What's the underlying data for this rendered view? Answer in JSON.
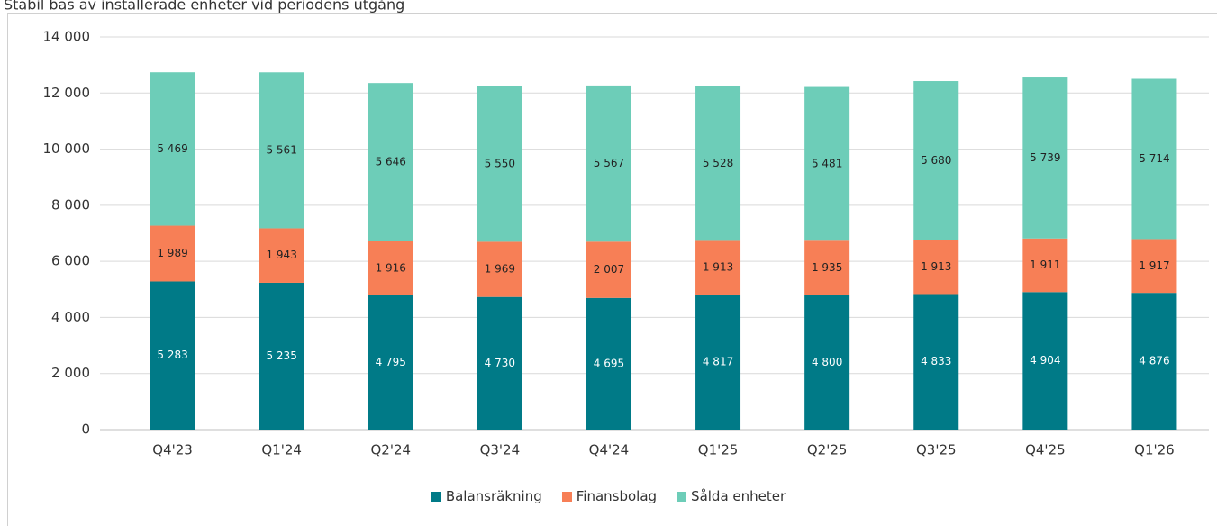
{
  "chart_data": {
    "type": "stacked_bar",
    "title": "Stabil bas av installerade enheter vid periodens utgång",
    "categories": [
      "Q4'23",
      "Q1'24",
      "Q2'24",
      "Q3'24",
      "Q4'24",
      "Q1'25",
      "Q2'25",
      "Q3'25",
      "Q4'25",
      "Q1'26"
    ],
    "series": [
      {
        "name": "Balansräkning",
        "color": "#007a87",
        "label_color": "#ffffff",
        "values": [
          5283,
          5235,
          4795,
          4730,
          4695,
          4817,
          4800,
          4833,
          4904,
          4876
        ],
        "value_labels": [
          "5 283",
          "5 235",
          "4 795",
          "4 730",
          "4 695",
          "4 817",
          "4 800",
          "4 833",
          "4 904",
          "4 876"
        ]
      },
      {
        "name": "Finansbolag",
        "color": "#f77f56",
        "label_color": "#222222",
        "values": [
          1989,
          1943,
          1916,
          1969,
          2007,
          1913,
          1935,
          1913,
          1911,
          1917
        ],
        "value_labels": [
          "1 989",
          "1 943",
          "1 916",
          "1 969",
          "2 007",
          "1 913",
          "1 935",
          "1 913",
          "1 911",
          "1 917"
        ]
      },
      {
        "name": "Sålda enheter",
        "color": "#6dcdb8",
        "label_color": "#222222",
        "values": [
          5469,
          5561,
          5646,
          5550,
          5567,
          5528,
          5481,
          5680,
          5739,
          5714
        ],
        "value_labels": [
          "5 469",
          "5 561",
          "5 646",
          "5 550",
          "5 567",
          "5 528",
          "5 481",
          "5 680",
          "5 739",
          "5 714"
        ]
      }
    ],
    "ylim": [
      0,
      14000
    ],
    "yticks": [
      0,
      {
        "value": 2000,
        "label": "2 000"
      },
      {
        "value": 4000,
        "label": "4 000"
      },
      {
        "value": 6000,
        "label": "6 000"
      },
      {
        "value": 8000,
        "label": "8 000"
      },
      {
        "value": 10000,
        "label": "10 000"
      },
      {
        "value": 12000,
        "label": "12 000"
      },
      {
        "value": 14000,
        "label": "14 000"
      }
    ],
    "grid": true,
    "legend": "bottom"
  }
}
